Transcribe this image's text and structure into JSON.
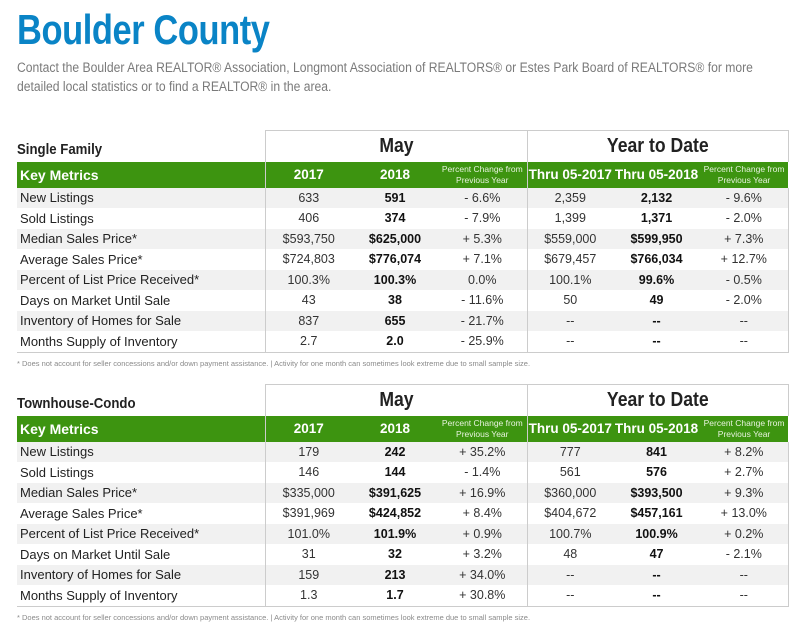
{
  "header": {
    "title": "Boulder County",
    "intro": "Contact the Boulder Area REALTOR® Association, Longmont Association of REALTORS® or Estes Park Board of REALTORS® for more detailed local statistics or to find a REALTOR® in the area."
  },
  "columns": {
    "month_group": "May",
    "ytd_group": "Year to Date",
    "key_metrics": "Key Metrics",
    "y2017": "2017",
    "y2018": "2018",
    "pct_change": "Percent Change from Previous Year",
    "ytd2017": "Thru 05-2017",
    "ytd2018": "Thru 05-2018"
  },
  "colors": {
    "title": "#0a84c6",
    "header_green": "#3d9410"
  },
  "sections": [
    {
      "name": "Single Family",
      "rows": [
        [
          "New Listings",
          "633",
          "591",
          "- 6.6%",
          "2,359",
          "2,132",
          "- 9.6%"
        ],
        [
          "Sold Listings",
          "406",
          "374",
          "- 7.9%",
          "1,399",
          "1,371",
          "- 2.0%"
        ],
        [
          "Median Sales Price*",
          "$593,750",
          "$625,000",
          "+ 5.3%",
          "$559,000",
          "$599,950",
          "+ 7.3%"
        ],
        [
          "Average Sales Price*",
          "$724,803",
          "$776,074",
          "+ 7.1%",
          "$679,457",
          "$766,034",
          "+ 12.7%"
        ],
        [
          "Percent of List Price Received*",
          "100.3%",
          "100.3%",
          "0.0%",
          "100.1%",
          "99.6%",
          "- 0.5%"
        ],
        [
          "Days on Market Until Sale",
          "43",
          "38",
          "- 11.6%",
          "50",
          "49",
          "- 2.0%"
        ],
        [
          "Inventory of Homes for Sale",
          "837",
          "655",
          "- 21.7%",
          "--",
          "--",
          "--"
        ],
        [
          "Months Supply of Inventory",
          "2.7",
          "2.0",
          "- 25.9%",
          "--",
          "--",
          "--"
        ]
      ],
      "footnote": "* Does not account for seller concessions and/or down payment assistance.  |  Activity for one month can sometimes look extreme due to small sample size."
    },
    {
      "name": "Townhouse-Condo",
      "rows": [
        [
          "New Listings",
          "179",
          "242",
          "+ 35.2%",
          "777",
          "841",
          "+ 8.2%"
        ],
        [
          "Sold Listings",
          "146",
          "144",
          "- 1.4%",
          "561",
          "576",
          "+ 2.7%"
        ],
        [
          "Median Sales Price*",
          "$335,000",
          "$391,625",
          "+ 16.9%",
          "$360,000",
          "$393,500",
          "+ 9.3%"
        ],
        [
          "Average Sales Price*",
          "$391,969",
          "$424,852",
          "+ 8.4%",
          "$404,672",
          "$457,161",
          "+ 13.0%"
        ],
        [
          "Percent of List Price Received*",
          "101.0%",
          "101.9%",
          "+ 0.9%",
          "100.7%",
          "100.9%",
          "+ 0.2%"
        ],
        [
          "Days on Market Until Sale",
          "31",
          "32",
          "+ 3.2%",
          "48",
          "47",
          "- 2.1%"
        ],
        [
          "Inventory of Homes for Sale",
          "159",
          "213",
          "+ 34.0%",
          "--",
          "--",
          "--"
        ],
        [
          "Months Supply of Inventory",
          "1.3",
          "1.7",
          "+ 30.8%",
          "--",
          "--",
          "--"
        ]
      ],
      "footnote": "* Does not account for seller concessions and/or down payment assistance.  |  Activity for one month can sometimes look extreme due to small sample size."
    }
  ]
}
